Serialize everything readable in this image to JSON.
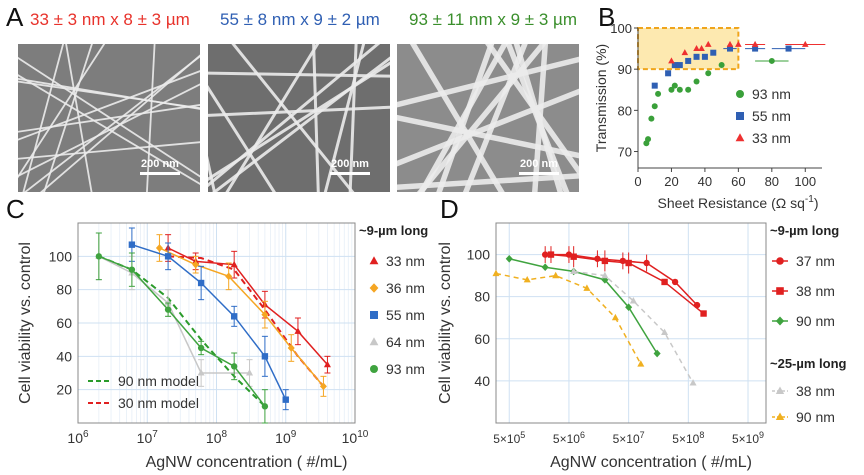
{
  "panel_a": {
    "letter": "A",
    "images": [
      {
        "title": "33 ± 3 nm x 8 ± 3 µm",
        "color": "#e8322b",
        "scale_label": "200 nm"
      },
      {
        "title": "55 ± 8 nm x 9 ± 2 µm",
        "color": "#2f5fb3",
        "scale_label": "200 nm"
      },
      {
        "title": "93 ± 11 nm x 9 ± 3 µm",
        "color": "#3a8f2c",
        "scale_label": "200 nm"
      }
    ]
  },
  "panel_b": {
    "letter": "B"
  },
  "panel_c": {
    "letter": "C"
  },
  "panel_d": {
    "letter": "D"
  },
  "chart_data": [
    {
      "id": "B",
      "type": "scatter",
      "xlabel": "Sheet Resistance (Ω sq",
      "xlabel_sup": "-1",
      "xlabel_end": ")",
      "ylabel": "Transmission (%)",
      "xlim": [
        0,
        110
      ],
      "ylim": [
        66,
        100
      ],
      "xticks": [
        0,
        20,
        40,
        60,
        80,
        100
      ],
      "yticks": [
        70,
        80,
        90,
        100
      ],
      "highlight_box": {
        "x": [
          0,
          60
        ],
        "y": [
          90,
          100
        ]
      },
      "legend_position": "right",
      "series": [
        {
          "name": "93 nm",
          "color": "#3aa03a",
          "marker": "circle",
          "points": [
            [
              5,
              72
            ],
            [
              6,
              73
            ],
            [
              8,
              78
            ],
            [
              10,
              81
            ],
            [
              12,
              84
            ],
            [
              20,
              85
            ],
            [
              22,
              86
            ],
            [
              25,
              85
            ],
            [
              30,
              85
            ],
            [
              35,
              87
            ],
            [
              42,
              89
            ],
            [
              50,
              91
            ],
            [
              80,
              92
            ]
          ],
          "xerr": [
            0,
            0,
            0,
            0,
            0,
            0,
            0,
            0,
            0,
            0,
            0,
            0,
            10
          ]
        },
        {
          "name": "55 nm",
          "color": "#2f5fb3",
          "marker": "square",
          "points": [
            [
              10,
              86
            ],
            [
              18,
              89
            ],
            [
              22,
              91
            ],
            [
              25,
              91
            ],
            [
              30,
              92
            ],
            [
              35,
              93
            ],
            [
              40,
              93
            ],
            [
              45,
              94
            ],
            [
              55,
              95
            ],
            [
              70,
              95
            ],
            [
              90,
              95
            ]
          ],
          "xerr": [
            0,
            0,
            0,
            0,
            0,
            0,
            0,
            0,
            4,
            6,
            10
          ]
        },
        {
          "name": "33 nm",
          "color": "#ee3030",
          "marker": "triangle",
          "points": [
            [
              20,
              92
            ],
            [
              28,
              94
            ],
            [
              35,
              95
            ],
            [
              38,
              95
            ],
            [
              42,
              96
            ],
            [
              55,
              96
            ],
            [
              60,
              96
            ],
            [
              70,
              96
            ],
            [
              100,
              96
            ]
          ],
          "xerr": [
            0,
            0,
            0,
            0,
            0,
            0,
            0,
            6,
            12
          ]
        }
      ]
    },
    {
      "id": "C",
      "type": "line",
      "xlabel": "AgNW concentration ( #/mL)",
      "ylabel": "Cell viability vs. control",
      "xscale": "log",
      "xlim": [
        1000000,
        10000000000
      ],
      "ylim": [
        0,
        120
      ],
      "xtick_values": [
        1000000,
        10000000,
        100000000,
        1000000000,
        10000000000
      ],
      "xtick_base": "10",
      "xtick_exponents": [
        "6",
        "7",
        "8",
        "9",
        "10"
      ],
      "yticks": [
        20,
        40,
        60,
        80,
        100
      ],
      "grid": true,
      "legend_title": "~9-µm long",
      "legend_position": "right",
      "series": [
        {
          "name": "33 nm",
          "color": "#e02020",
          "marker": "triangle",
          "x": [
            20000000,
            50000000,
            180000000,
            500000000,
            1500000000,
            4000000000
          ],
          "y": [
            105,
            97,
            95,
            71,
            55,
            35
          ],
          "yerr": [
            8,
            5,
            8,
            8,
            8,
            5
          ]
        },
        {
          "name": "36 nm",
          "color": "#f5a623",
          "marker": "diamond",
          "x": [
            15000000,
            50000000,
            150000000,
            500000000,
            1200000000,
            3500000000
          ],
          "y": [
            105,
            95,
            88,
            65,
            45,
            22
          ],
          "yerr": [
            8,
            5,
            8,
            8,
            8,
            6
          ]
        },
        {
          "name": "55 nm",
          "color": "#2f6dc7",
          "marker": "square",
          "x": [
            6000000,
            20000000,
            60000000,
            180000000,
            500000000,
            1000000000
          ],
          "y": [
            107,
            100,
            84,
            64,
            40,
            14
          ],
          "yerr": [
            10,
            8,
            10,
            6,
            12,
            6
          ]
        },
        {
          "name": "64 nm",
          "color": "#c8c8c8",
          "marker": "triangle",
          "x": [
            2000000,
            6000000,
            20000000,
            60000000,
            300000000
          ],
          "y": [
            100,
            90,
            72,
            30,
            30
          ],
          "yerr": [
            14,
            10,
            8,
            8,
            8
          ]
        },
        {
          "name": "93 nm",
          "color": "#3fa33f",
          "marker": "circle",
          "x": [
            2000000,
            6000000,
            20000000,
            60000000,
            180000000,
            500000000
          ],
          "y": [
            100,
            92,
            68,
            45,
            34,
            10
          ],
          "yerr": [
            14,
            10,
            4,
            4,
            8,
            10
          ]
        }
      ],
      "models": [
        {
          "name": "90 nm model",
          "color": "#2a9b2a",
          "x": [
            2000000,
            6000000,
            20000000,
            60000000,
            180000000,
            500000000
          ],
          "y": [
            100,
            92,
            75,
            50,
            28,
            10
          ]
        },
        {
          "name": "30 nm model",
          "color": "#e02020",
          "x": [
            20000000,
            60000000,
            180000000,
            500000000,
            1500000000,
            3500000000
          ],
          "y": [
            100,
            99,
            92,
            68,
            40,
            22
          ]
        }
      ]
    },
    {
      "id": "D",
      "type": "line",
      "xlabel": "AgNW concentration ( #/mL)",
      "ylabel": "Cell viability vs. control",
      "xscale": "log",
      "xlim": [
        300000,
        10000000000
      ],
      "ylim": [
        20,
        115
      ],
      "xtick_values": [
        500000,
        5000000,
        50000000,
        500000000,
        5000000000
      ],
      "xtick_mantissa": "5×10",
      "xtick_exponents": [
        "5",
        "6",
        "7",
        "8",
        "9"
      ],
      "yticks": [
        40,
        60,
        80,
        100
      ],
      "grid": true,
      "legend_groups": [
        "~9-µm long",
        "~25-µm long"
      ],
      "legend_position": "right",
      "series": [
        {
          "name": "37 nm",
          "group": 0,
          "color": "#e02020",
          "marker": "circle",
          "dashed": false,
          "x": [
            2000000,
            5000000,
            15000000,
            40000000,
            100000000,
            300000000,
            700000000
          ],
          "y": [
            100,
            100,
            98,
            97,
            96,
            87,
            76
          ],
          "yerr": [
            4,
            4,
            4,
            4,
            4,
            0,
            0
          ]
        },
        {
          "name": "38 nm",
          "group": 0,
          "color": "#e02020",
          "marker": "square",
          "dashed": false,
          "x": [
            2500000,
            6000000,
            20000000,
            50000000,
            200000000,
            900000000
          ],
          "y": [
            100,
            99,
            97,
            96,
            87,
            72
          ],
          "yerr": [
            4,
            5,
            5,
            5,
            0,
            0
          ]
        },
        {
          "name": "90 nm",
          "group": 0,
          "color": "#3fa33f",
          "marker": "diamond",
          "dashed": false,
          "x": [
            500000,
            2000000,
            6000000,
            20000000,
            50000000,
            150000000
          ],
          "y": [
            98,
            94,
            92,
            88,
            75,
            53
          ],
          "yerr": [
            0,
            0,
            0,
            0,
            0,
            0
          ]
        },
        {
          "name": "38 nm",
          "group": 1,
          "color": "#c8c8c8",
          "marker": "triangle",
          "dashed": true,
          "x": [
            6000000,
            20000000,
            60000000,
            200000000,
            600000000
          ],
          "y": [
            92,
            90,
            78,
            63,
            39
          ],
          "yerr": [
            0,
            0,
            0,
            0,
            0
          ]
        },
        {
          "name": "90 nm",
          "group": 1,
          "color": "#f0b020",
          "marker": "triangle",
          "dashed": true,
          "x": [
            300000,
            1000000,
            3000000,
            10000000,
            30000000,
            80000000
          ],
          "y": [
            91,
            88,
            90,
            84,
            70,
            48
          ],
          "yerr": [
            0,
            0,
            0,
            0,
            0,
            0
          ]
        }
      ]
    }
  ]
}
